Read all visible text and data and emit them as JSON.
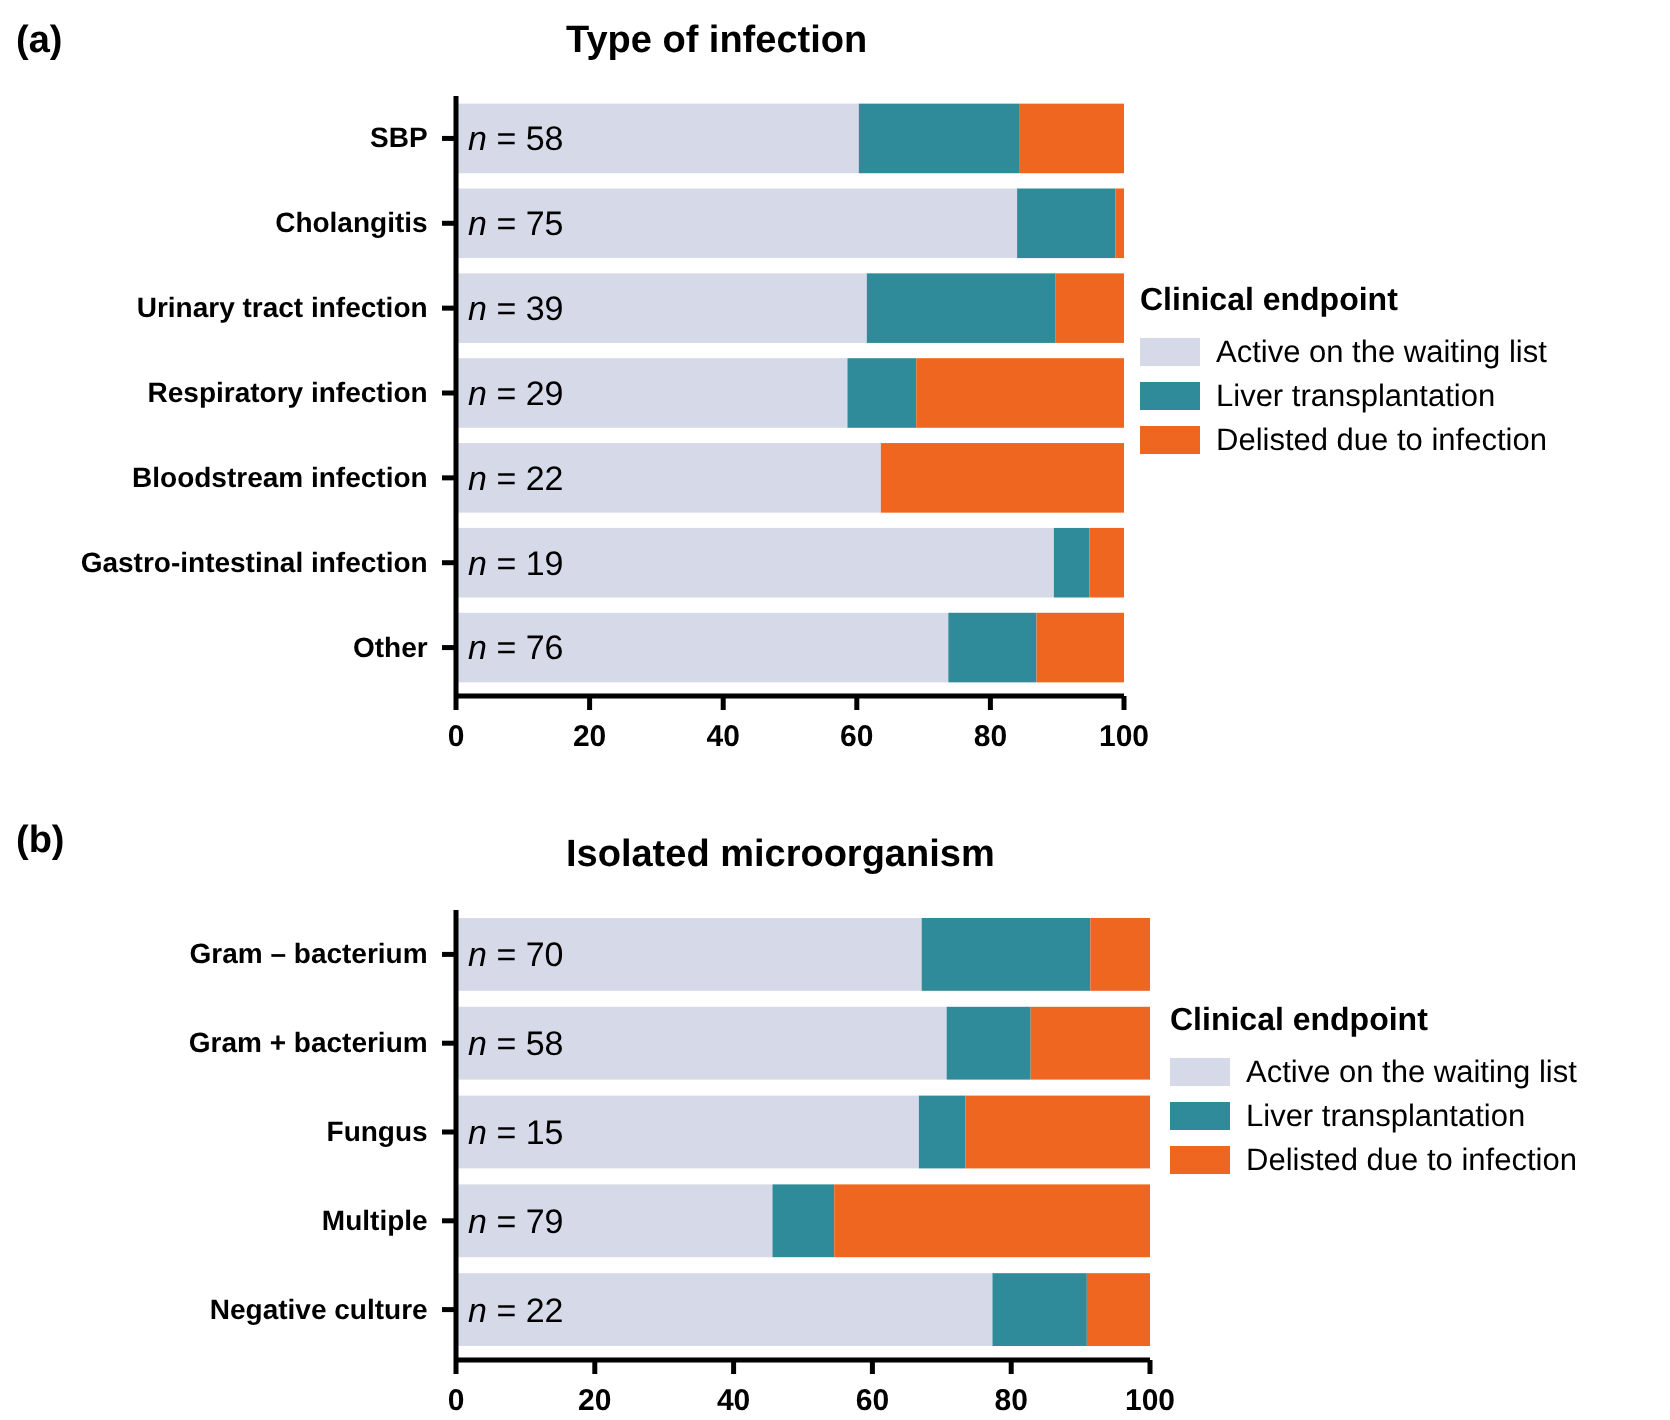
{
  "chart_data": [
    {
      "type": "bar",
      "orientation": "horizontal",
      "stacked": true,
      "title": "Type of infection",
      "legend_title": "Clinical endpoint",
      "legend": "right",
      "categories": [
        "SBP",
        "Cholangitis",
        "Urinary tract infection",
        "Respiratory infection",
        "Bloodstream infection",
        "Gastro-intestinal infection",
        "Other"
      ],
      "xlim": [
        0,
        100
      ],
      "xticks": [
        0,
        20,
        40,
        60,
        80,
        100
      ],
      "series": [
        {
          "name": "Active on the waiting list",
          "color": "#d6d9e8",
          "values": [
            60.3,
            84,
            61.5,
            58.6,
            63.6,
            89.5,
            73.7
          ]
        },
        {
          "name": "Liver transplantation",
          "color": "#2f8a99",
          "values": [
            24.1,
            14.7,
            28.2,
            10.3,
            0,
            5.3,
            13.2
          ]
        },
        {
          "name": "Delisted due to infection",
          "color": "#ee661f",
          "values": [
            15.6,
            1.3,
            10.3,
            31.1,
            36.4,
            5.2,
            13.1
          ]
        }
      ],
      "annotations": [
        "(a)",
        {
          "text": "n = 58",
          "y": "SBP"
        },
        {
          "text": "n = 75",
          "y": "Cholangitis"
        },
        {
          "text": "n = 39",
          "y": "Urinary tract infection"
        },
        {
          "text": "n = 29",
          "y": "Respiratory infection"
        },
        {
          "text": "n = 22",
          "y": "Bloodstream infection"
        },
        {
          "text": "n = 19",
          "y": "Gastro-intestinal infection"
        },
        {
          "text": "n = 76",
          "y": "Other"
        }
      ]
    },
    {
      "type": "bar",
      "orientation": "horizontal",
      "stacked": true,
      "title": "Isolated microorganism",
      "legend_title": "Clinical endpoint",
      "legend": "right",
      "categories": [
        "Gram – bacterium",
        "Gram + bacterium",
        "Fungus",
        "Multiple",
        "Negative culture"
      ],
      "xlim": [
        0,
        100
      ],
      "xticks": [
        0,
        20,
        40,
        60,
        80,
        100
      ],
      "series": [
        {
          "name": "Active on the waiting list",
          "color": "#d6d9e8",
          "values": [
            67.1,
            70.7,
            66.7,
            45.6,
            77.3
          ]
        },
        {
          "name": "Liver transplantation",
          "color": "#2f8a99",
          "values": [
            24.3,
            12.1,
            6.7,
            8.9,
            13.6
          ]
        },
        {
          "name": "Delisted due to infection",
          "color": "#ee661f",
          "values": [
            8.6,
            17.2,
            26.6,
            45.5,
            9.1
          ]
        }
      ],
      "annotations": [
        "(b)",
        {
          "text": "n = 70",
          "y": "Gram – bacterium"
        },
        {
          "text": "n = 58",
          "y": "Gram + bacterium"
        },
        {
          "text": "n = 15",
          "y": "Fungus"
        },
        {
          "text": "n = 79",
          "y": "Multiple"
        },
        {
          "text": "n = 22",
          "y": "Negative culture"
        }
      ]
    }
  ]
}
